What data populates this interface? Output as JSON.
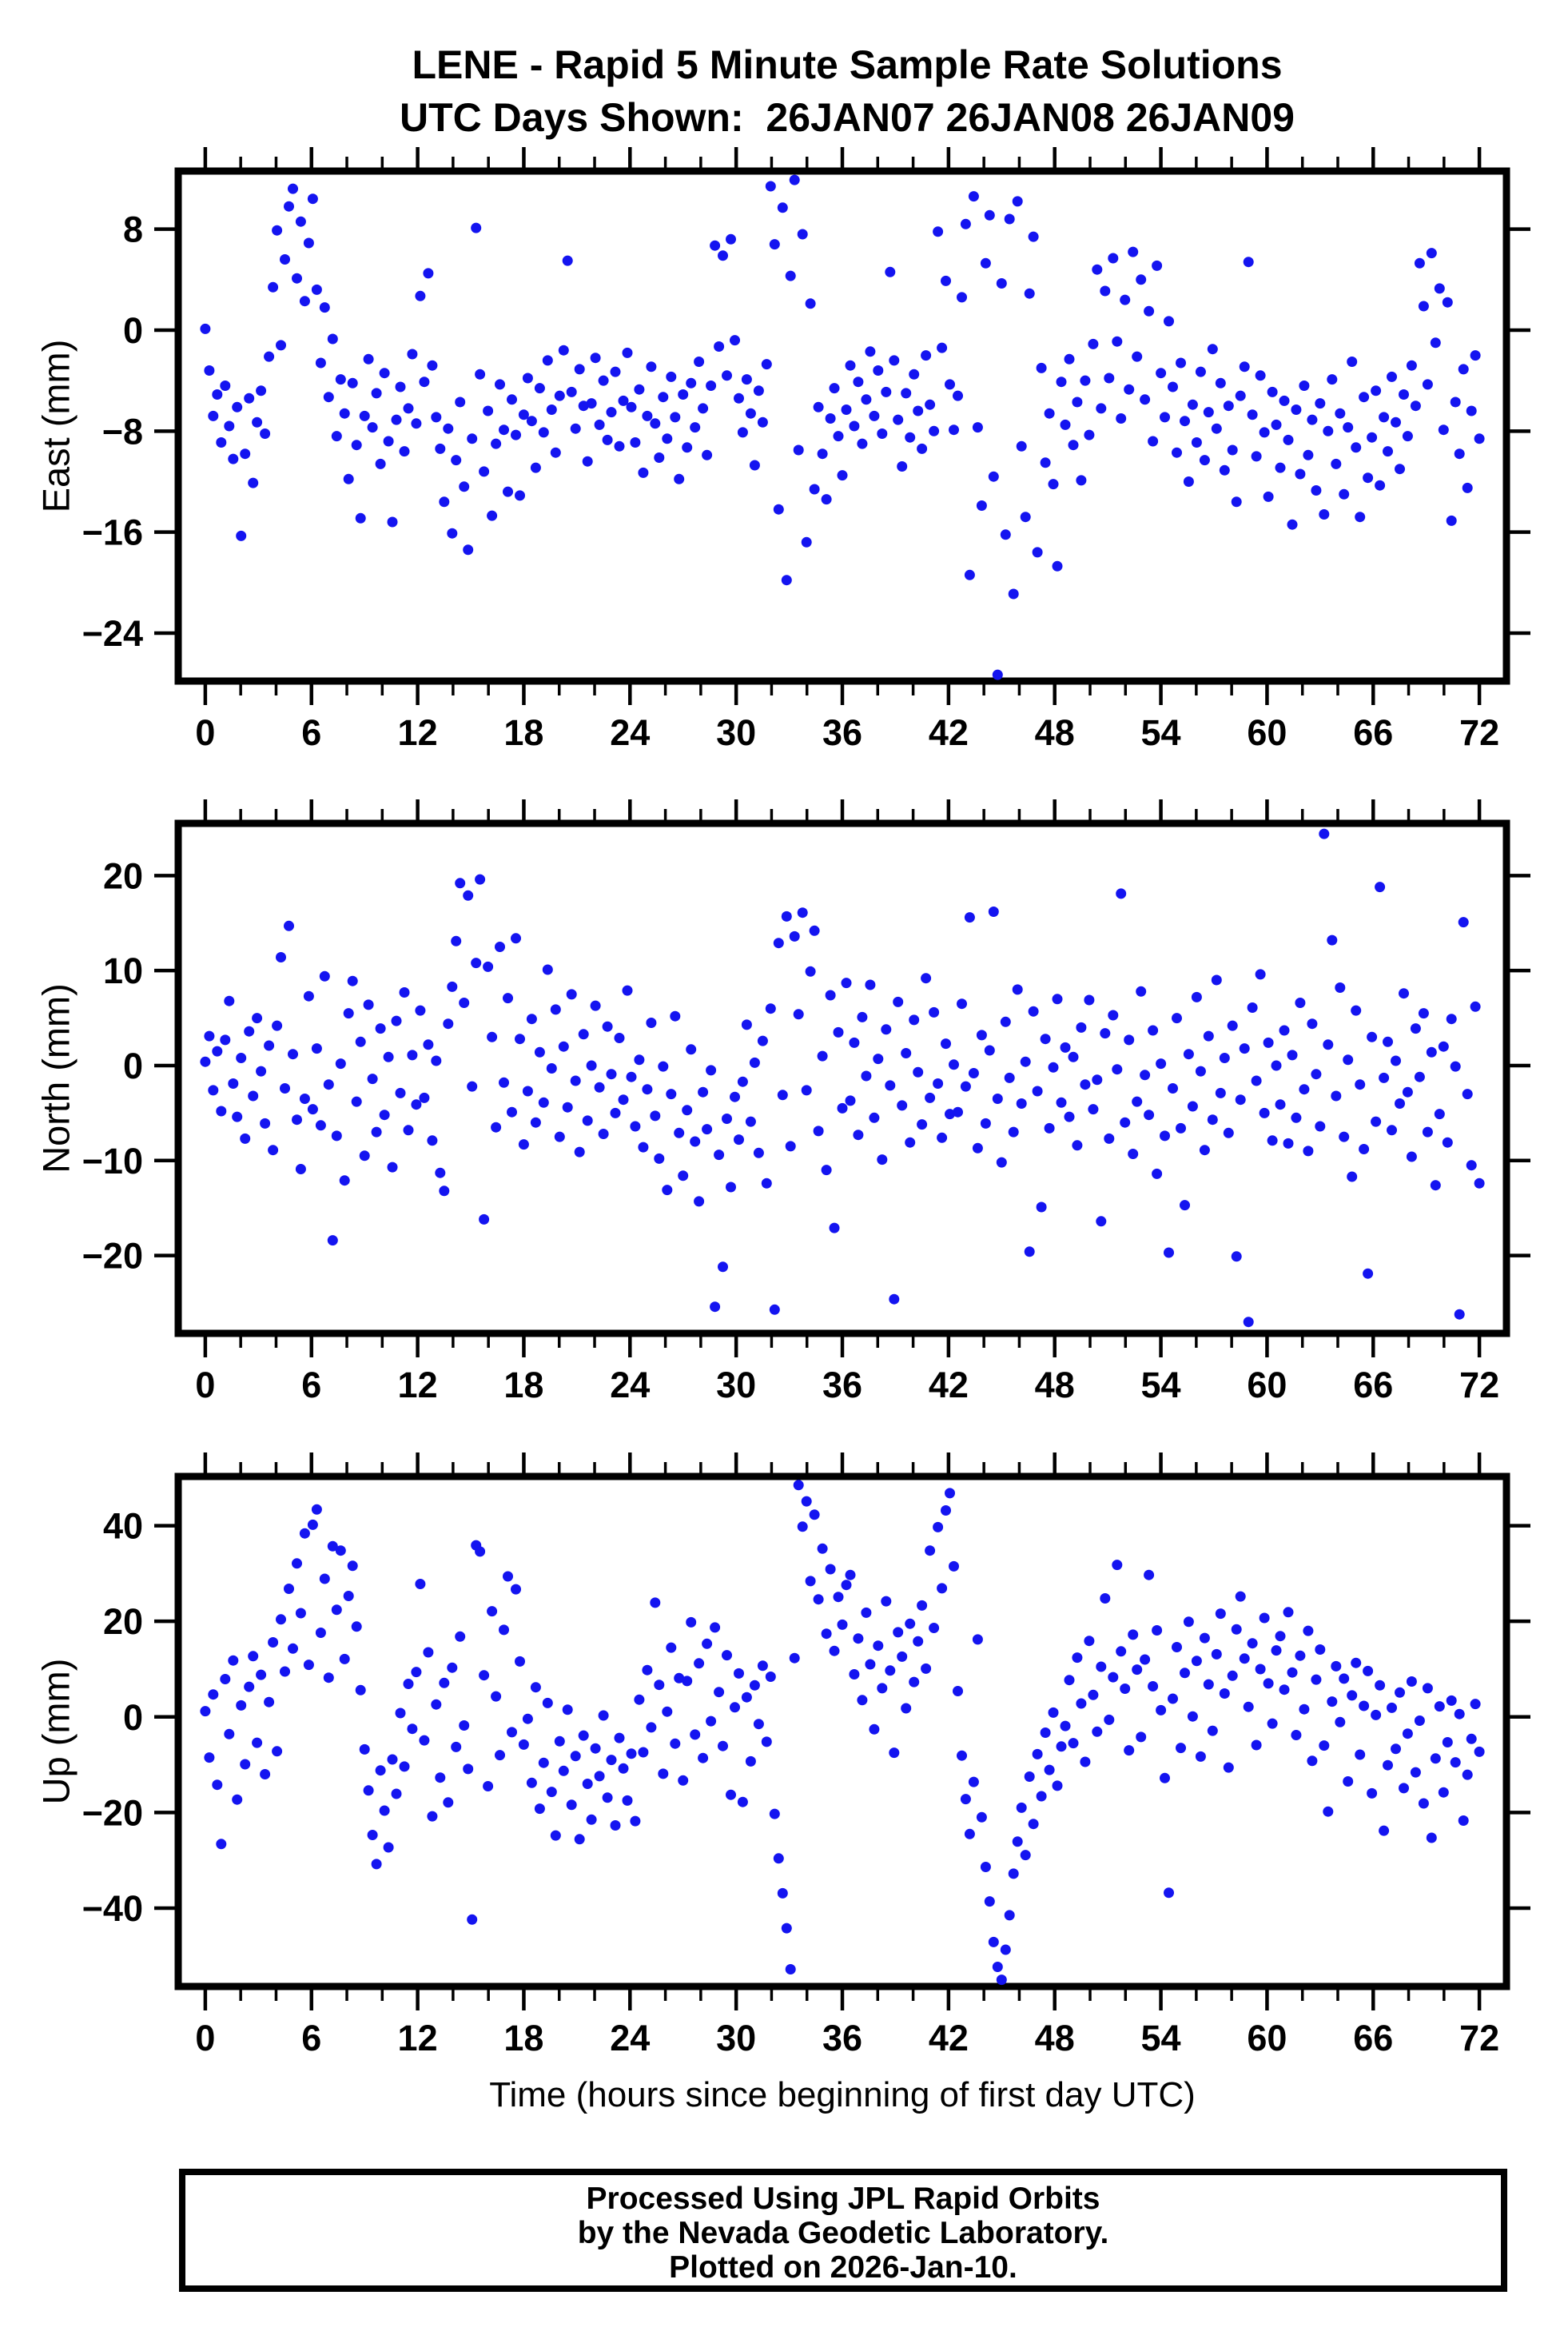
{
  "title": {
    "line1": "LENE - Rapid 5 Minute Sample Rate Solutions",
    "line2": "UTC Days Shown:  26JAN07 26JAN08 26JAN09"
  },
  "xlabel": "Time (hours since beginning of first day UTC)",
  "footer": {
    "line1": "Processed Using JPL Rapid Orbits",
    "line2": "by the Nevada Geodetic Laboratory.",
    "line3": "Plotted on 2026-Jan-10."
  },
  "style": {
    "marker_color": "#1414f0",
    "marker_radius": 6.5,
    "axis_color": "#000000",
    "background": "#ffffff"
  },
  "chart_data": [
    {
      "id": "east",
      "type": "scatter",
      "ylabel": "East (mm)",
      "xlabel": "Time (hours since beginning of first day UTC)",
      "x_start": 0,
      "x_step_hours": 0.225,
      "xlim": [
        -1.53,
        73.53
      ],
      "ylim": [
        -27.8,
        12.6
      ],
      "xticks": [
        0,
        6,
        12,
        18,
        24,
        30,
        36,
        42,
        48,
        54,
        60,
        66,
        72
      ],
      "xtick_minor_step": 2,
      "yticks": [
        8,
        0,
        -8,
        -16,
        -24
      ],
      "grid": false,
      "legend": false,
      "y": [
        0.1,
        -3.2,
        -6.8,
        -5.1,
        -8.9,
        -4.4,
        -7.6,
        -10.2,
        -6.1,
        -16.3,
        -9.8,
        -5.4,
        -12.1,
        -7.3,
        -4.8,
        -8.2,
        -2.1,
        3.4,
        7.9,
        -1.2,
        5.6,
        9.8,
        11.2,
        4.1,
        8.6,
        2.3,
        6.9,
        10.4,
        3.2,
        -2.6,
        1.8,
        -5.3,
        -0.7,
        -8.4,
        -3.9,
        -6.6,
        -11.8,
        -4.2,
        -9.1,
        -14.9,
        -6.8,
        -2.3,
        -7.7,
        -5.0,
        -10.6,
        -3.4,
        -8.8,
        -15.2,
        -7.1,
        -4.5,
        -9.6,
        -6.2,
        -1.9,
        -7.4,
        2.7,
        -4.1,
        4.5,
        -2.8,
        -6.9,
        -9.4,
        -13.6,
        -7.8,
        -16.1,
        -10.3,
        -5.7,
        -12.4,
        -17.4,
        -8.6,
        8.1,
        -3.5,
        -11.2,
        -6.4,
        -14.7,
        -9.0,
        -4.3,
        -7.9,
        -12.8,
        -5.5,
        -8.3,
        -13.1,
        -6.7,
        -3.8,
        -7.2,
        -10.9,
        -4.6,
        -8.1,
        -2.4,
        -6.3,
        -9.7,
        -5.2,
        -1.6,
        5.5,
        -4.9,
        -7.8,
        -3.1,
        -6.0,
        -10.4,
        -5.8,
        -2.2,
        -7.5,
        -4.0,
        -8.7,
        -6.5,
        -3.3,
        -9.2,
        -5.6,
        -1.8,
        -6.1,
        -8.9,
        -4.7,
        -11.3,
        -6.8,
        -2.9,
        -7.4,
        -10.1,
        -5.3,
        -8.6,
        -3.7,
        -6.9,
        -11.8,
        -5.1,
        -9.3,
        -4.2,
        -7.7,
        -2.5,
        -6.2,
        -9.9,
        -4.4,
        6.7,
        -1.3,
        5.9,
        -3.6,
        7.2,
        -0.8,
        -5.4,
        -8.1,
        -3.9,
        -6.6,
        -10.7,
        -4.8,
        -7.3,
        -2.7,
        11.4,
        6.8,
        -14.2,
        9.7,
        -19.8,
        4.3,
        11.9,
        -9.5,
        7.6,
        -16.8,
        2.1,
        -12.6,
        -6.1,
        -9.8,
        -13.4,
        -7.0,
        -4.6,
        -8.4,
        -11.5,
        -6.3,
        -2.8,
        -7.6,
        -4.1,
        -9.0,
        -5.5,
        -1.7,
        -6.8,
        -3.2,
        -8.2,
        -4.9,
        4.6,
        -2.4,
        -7.1,
        -10.8,
        -5.0,
        -8.5,
        -3.5,
        -6.4,
        -9.4,
        -2.0,
        -5.9,
        -8.0,
        7.8,
        -1.4,
        3.9,
        -4.3,
        -7.9,
        -5.2,
        2.6,
        8.4,
        -19.4,
        10.6,
        -7.7,
        -13.9,
        5.3,
        9.1,
        -11.6,
        -27.3,
        3.7,
        -16.2,
        8.8,
        -20.9,
        10.2,
        -9.2,
        -14.8,
        2.9,
        7.4,
        -17.6,
        -3.0,
        -10.5,
        -6.6,
        -12.2,
        -18.7,
        -4.1,
        -7.5,
        -2.3,
        -9.1,
        -5.7,
        -11.9,
        -4.0,
        -8.3,
        -1.1,
        4.8,
        -6.2,
        3.1,
        -3.8,
        5.7,
        -0.9,
        -7.0,
        2.4,
        -4.7,
        6.2,
        -2.1,
        4.0,
        -5.5,
        1.5,
        -8.8,
        5.1,
        -3.4,
        -6.9,
        0.7,
        -4.5,
        -9.7,
        -2.6,
        -7.2,
        -12.0,
        -5.9,
        -8.9,
        -3.3,
        -10.3,
        -6.5,
        -1.5,
        -7.8,
        -4.2,
        -11.1,
        -6.0,
        -9.5,
        -13.6,
        -5.2,
        -2.9,
        5.4,
        -6.7,
        -10.0,
        -3.6,
        -8.1,
        -13.2,
        -4.9,
        -7.5,
        -10.9,
        -5.6,
        -8.7,
        -15.4,
        -6.3,
        -11.4,
        -4.4,
        -9.9,
        -7.1,
        -12.7,
        -5.8,
        -14.6,
        -8.0,
        -3.9,
        -10.6,
        -6.6,
        -13.0,
        -7.7,
        -2.5,
        -9.3,
        -14.8,
        -5.3,
        -11.7,
        -8.5,
        -4.8,
        -12.3,
        -6.9,
        -9.6,
        -3.7,
        -7.3,
        -11.0,
        -5.1,
        -8.4,
        -2.8,
        -6.0,
        5.3,
        1.9,
        -4.3,
        6.1,
        -1.0,
        3.3,
        -7.9,
        2.2,
        -15.1,
        -5.7,
        -9.8,
        -3.1,
        -12.5,
        -6.4,
        -2.0,
        -8.6
      ]
    },
    {
      "id": "north",
      "type": "scatter",
      "ylabel": "North (mm)",
      "xlabel": "Time (hours since beginning of first day UTC)",
      "x_start": 0,
      "x_step_hours": 0.225,
      "xlim": [
        -1.53,
        73.53
      ],
      "ylim": [
        -28.2,
        25.5
      ],
      "xticks": [
        0,
        6,
        12,
        18,
        24,
        30,
        36,
        42,
        48,
        54,
        60,
        66,
        72
      ],
      "xtick_minor_step": 2,
      "yticks": [
        20,
        10,
        0,
        -10,
        -20
      ],
      "grid": false,
      "legend": false,
      "y": [
        0.4,
        3.1,
        -2.6,
        1.5,
        -4.8,
        2.7,
        6.8,
        -1.9,
        -5.4,
        0.8,
        -7.7,
        3.6,
        -3.2,
        5.0,
        -0.6,
        -6.1,
        2.1,
        -8.9,
        4.2,
        11.4,
        -2.4,
        14.7,
        1.2,
        -5.7,
        -10.9,
        -3.5,
        7.3,
        -4.6,
        1.8,
        -6.3,
        9.4,
        -2.0,
        -18.4,
        -7.4,
        0.2,
        -12.1,
        5.5,
        8.9,
        -3.8,
        2.5,
        -9.5,
        6.4,
        -1.4,
        -7.0,
        3.9,
        -5.2,
        0.9,
        -10.7,
        4.7,
        -2.9,
        7.7,
        -6.8,
        1.1,
        -4.1,
        5.8,
        -3.4,
        2.2,
        -7.9,
        0.5,
        -11.3,
        -13.2,
        4.4,
        8.3,
        13.1,
        19.2,
        6.6,
        17.9,
        -2.2,
        10.8,
        19.6,
        -16.2,
        10.4,
        3.0,
        -6.5,
        12.5,
        -1.8,
        7.1,
        -4.9,
        13.4,
        2.8,
        -8.3,
        -2.7,
        4.9,
        -6.0,
        1.4,
        -3.9,
        10.1,
        -0.3,
        5.9,
        -7.5,
        2.0,
        -4.4,
        7.5,
        -1.6,
        -9.1,
        3.3,
        -5.8,
        0.0,
        6.3,
        -2.3,
        -7.2,
        4.1,
        -0.9,
        -5.0,
        2.9,
        -3.6,
        7.9,
        -1.2,
        -6.4,
        0.6,
        -8.6,
        -2.5,
        4.5,
        -5.3,
        -9.8,
        -0.1,
        -13.1,
        -3.0,
        5.2,
        -7.1,
        -11.6,
        -4.7,
        1.7,
        -8.0,
        -14.3,
        -2.8,
        -6.7,
        -0.5,
        -25.4,
        -9.4,
        -21.2,
        -5.6,
        -12.8,
        -3.3,
        -7.8,
        -1.7,
        4.3,
        -5.9,
        0.3,
        -9.2,
        2.6,
        -12.4,
        6.0,
        -25.7,
        12.9,
        -3.1,
        15.7,
        -8.5,
        13.6,
        5.4,
        16.1,
        -2.6,
        9.9,
        14.2,
        -6.9,
        1.0,
        -11.0,
        7.4,
        -17.1,
        3.5,
        -4.5,
        8.7,
        -3.7,
        2.4,
        -7.3,
        5.1,
        -1.1,
        8.5,
        -5.5,
        0.7,
        -9.9,
        3.8,
        -2.1,
        -24.6,
        6.7,
        -4.2,
        1.3,
        -8.1,
        4.8,
        -0.7,
        -6.2,
        9.2,
        -3.4,
        5.6,
        -1.9,
        -7.6,
        2.3,
        -5.1,
        0.1,
        -4.9,
        6.5,
        -2.2,
        15.6,
        -0.8,
        -8.7,
        3.2,
        -6.1,
        1.6,
        16.2,
        -3.5,
        -10.2,
        4.6,
        -1.3,
        -7.0,
        8.0,
        -4.0,
        0.4,
        -19.6,
        5.7,
        -2.7,
        -14.9,
        2.8,
        -6.6,
        -0.2,
        7.0,
        -3.9,
        1.9,
        -5.4,
        0.9,
        -8.4,
        4.0,
        -2.0,
        6.9,
        -4.6,
        -1.5,
        -16.4,
        3.4,
        -7.7,
        5.3,
        -0.4,
        18.1,
        -6.0,
        2.7,
        -9.3,
        -3.8,
        7.8,
        -1.0,
        -5.2,
        3.7,
        -11.4,
        0.2,
        -7.4,
        -19.7,
        -2.4,
        5.0,
        -6.6,
        -14.7,
        1.2,
        -4.3,
        7.2,
        -0.6,
        -8.9,
        3.1,
        -5.7,
        9.0,
        -2.9,
        0.8,
        -7.1,
        4.2,
        -20.1,
        -3.6,
        1.8,
        -27.0,
        6.1,
        -1.6,
        9.6,
        -5.0,
        2.4,
        -7.9,
        0.0,
        -4.1,
        3.7,
        -8.2,
        1.1,
        -5.5,
        6.6,
        -2.5,
        -9.0,
        4.4,
        -0.9,
        -6.4,
        24.4,
        2.2,
        13.2,
        -3.2,
        8.2,
        -7.5,
        0.6,
        -11.7,
        5.8,
        -2.0,
        -8.8,
        -21.9,
        3.0,
        -5.9,
        18.8,
        -1.3,
        2.5,
        -6.8,
        0.5,
        -4.0,
        7.6,
        -2.8,
        -9.6,
        3.9,
        -1.2,
        5.5,
        -7.0,
        1.4,
        -12.6,
        -5.1,
        2.0,
        -8.1,
        4.9,
        -0.1,
        -26.2,
        15.1,
        -3.0,
        -10.5,
        6.2,
        -12.4
      ]
    },
    {
      "id": "up",
      "type": "scatter",
      "ylabel": "Up (mm)",
      "xlabel": "Time (hours since beginning of first day UTC)",
      "x_start": 0,
      "x_step_hours": 0.225,
      "xlim": [
        -1.53,
        73.53
      ],
      "ylim": [
        -56.4,
        50.3
      ],
      "xticks": [
        0,
        6,
        12,
        18,
        24,
        30,
        36,
        42,
        48,
        54,
        60,
        66,
        72
      ],
      "xtick_minor_step": 2,
      "yticks": [
        40,
        20,
        0,
        -20,
        -40
      ],
      "grid": false,
      "legend": false,
      "y": [
        1.2,
        -8.5,
        4.7,
        -14.2,
        -26.6,
        7.9,
        -3.6,
        11.8,
        -17.3,
        2.4,
        -9.9,
        6.3,
        12.7,
        -5.4,
        8.8,
        -12.0,
        3.1,
        15.6,
        -7.2,
        20.4,
        9.5,
        26.8,
        14.3,
        32.1,
        21.7,
        38.4,
        10.9,
        40.2,
        43.4,
        17.6,
        28.9,
        8.2,
        35.7,
        22.4,
        34.8,
        12.1,
        25.3,
        31.6,
        18.9,
        5.6,
        -6.8,
        -15.4,
        -24.7,
        -30.8,
        -11.2,
        -19.6,
        -27.3,
        -8.9,
        -16.1,
        0.8,
        -10.4,
        6.9,
        -2.5,
        9.4,
        27.8,
        -4.9,
        13.5,
        -20.8,
        2.6,
        -12.7,
        7.1,
        -17.9,
        10.3,
        -6.3,
        16.8,
        -1.8,
        -10.9,
        -42.4,
        35.9,
        34.6,
        8.7,
        -14.5,
        22.1,
        4.3,
        -8.0,
        18.2,
        29.4,
        -3.2,
        26.7,
        11.6,
        -5.8,
        -0.4,
        -13.8,
        6.2,
        -19.2,
        -9.6,
        2.9,
        -15.7,
        -24.8,
        -5.1,
        -11.3,
        1.5,
        -18.4,
        -8.2,
        -25.6,
        -3.9,
        -14.0,
        -21.5,
        -6.6,
        -12.4,
        0.3,
        -16.9,
        -9.0,
        -22.7,
        -4.4,
        -10.8,
        -17.5,
        -7.7,
        -21.8,
        3.6,
        -7.4,
        9.8,
        -2.2,
        23.9,
        6.7,
        -11.9,
        1.1,
        14.5,
        -5.6,
        8.1,
        -13.3,
        7.5,
        19.8,
        -3.7,
        11.2,
        -8.6,
        15.3,
        -0.9,
        18.7,
        5.2,
        -6.1,
        12.9,
        -16.3,
        2.0,
        9.1,
        -17.8,
        4.1,
        -9.3,
        6.6,
        -1.5,
        10.7,
        -5.2,
        8.4,
        -20.3,
        -29.6,
        -36.9,
        -44.2,
        -52.8,
        12.3,
        48.5,
        39.8,
        45.1,
        28.4,
        42.3,
        24.6,
        35.2,
        17.4,
        30.9,
        13.8,
        25.1,
        19.3,
        27.6,
        29.7,
        8.9,
        16.4,
        3.5,
        21.8,
        11.0,
        -2.6,
        14.9,
        6.0,
        24.2,
        9.7,
        -7.5,
        17.7,
        12.6,
        1.8,
        19.5,
        7.3,
        15.8,
        23.3,
        10.1,
        34.8,
        18.6,
        39.7,
        26.9,
        43.2,
        46.8,
        31.5,
        5.4,
        -8.1,
        -17.2,
        -24.5,
        -13.6,
        16.2,
        -21.0,
        -31.4,
        -38.6,
        -47.1,
        -52.3,
        -55.0,
        -48.7,
        -41.5,
        -32.8,
        -26.1,
        -19.0,
        -28.9,
        -12.5,
        -22.4,
        -7.8,
        -16.6,
        -3.3,
        -11.1,
        0.9,
        -14.4,
        -6.2,
        -1.9,
        7.7,
        -5.5,
        12.4,
        2.8,
        -9.4,
        15.9,
        4.6,
        -3.1,
        10.5,
        24.8,
        -0.6,
        8.3,
        31.8,
        13.7,
        5.9,
        -7.0,
        17.2,
        9.9,
        -4.2,
        12.0,
        29.7,
        6.4,
        18.1,
        1.4,
        -12.8,
        -36.8,
        3.8,
        14.6,
        -6.5,
        9.2,
        19.9,
        0.1,
        11.7,
        -8.3,
        16.5,
        6.8,
        -2.9,
        13.1,
        21.6,
        4.9,
        -10.6,
        8.6,
        18.3,
        25.2,
        12.2,
        2.1,
        15.4,
        -5.9,
        10.0,
        20.7,
        7.0,
        -1.4,
        13.9,
        16.9,
        5.7,
        21.9,
        9.3,
        -3.8,
        12.8,
        1.6,
        18.0,
        -9.2,
        7.8,
        14.1,
        -6.0,
        -19.8,
        3.2,
        10.6,
        -1.1,
        8.0,
        -13.5,
        4.5,
        11.3,
        -7.9,
        2.3,
        9.6,
        -16.0,
        0.4,
        6.6,
        -23.8,
        -10.1,
        1.9,
        -6.7,
        5.1,
        -14.9,
        -3.5,
        7.4,
        -11.6,
        -0.8,
        -18.1,
        6.0,
        -25.3,
        -8.7,
        2.2,
        -15.8,
        -5.3,
        3.4,
        -9.5,
        0.6,
        -21.7,
        -12.1,
        -4.6,
        2.7,
        -7.3
      ]
    }
  ]
}
